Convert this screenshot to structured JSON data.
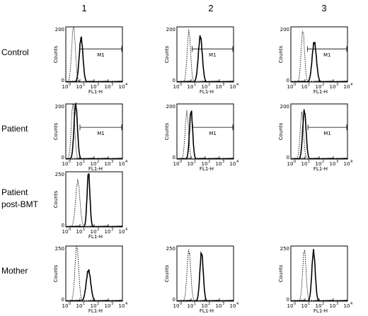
{
  "columns": [
    "1",
    "2",
    "3"
  ],
  "rows": [
    {
      "label_lines": [
        "Control"
      ]
    },
    {
      "label_lines": [
        "Patient"
      ]
    },
    {
      "label_lines": [
        "Patient",
        "post-BMT"
      ]
    },
    {
      "label_lines": [
        "Mother"
      ]
    }
  ],
  "chart_data": [
    {
      "type": "line",
      "row": 0,
      "col": 0,
      "ylabel": "Counts",
      "xlabel": "FL1-H",
      "xscale": "log",
      "xlim": [
        1,
        10000
      ],
      "ylim": [
        0,
        200
      ],
      "ytick_labels": [
        "0",
        "200"
      ],
      "x_ticks": [
        1,
        10,
        100,
        1000,
        10000
      ],
      "x_tick_labels": [
        "10",
        "10",
        "10",
        "10",
        "10"
      ],
      "x_tick_exponents": [
        "0",
        "1",
        "2",
        "3",
        "4"
      ],
      "gate": {
        "label": "M1",
        "x_start": 10,
        "x_end": 10000,
        "y": 120
      },
      "series": [
        {
          "style": "dotted",
          "peak_x": 3.5,
          "peak_y": 200,
          "spread": 0.13
        },
        {
          "style": "solid",
          "peak_x": 12,
          "peak_y": 160,
          "spread": 0.13
        }
      ]
    },
    {
      "type": "line",
      "row": 0,
      "col": 1,
      "ylabel": "Counts",
      "xlabel": "FL1-H",
      "xscale": "log",
      "xlim": [
        1,
        10000
      ],
      "ylim": [
        0,
        200
      ],
      "ytick_labels": [
        "0",
        "200"
      ],
      "x_ticks": [
        1,
        10,
        100,
        1000,
        10000
      ],
      "x_tick_labels": [
        "10",
        "10",
        "10",
        "10",
        "10"
      ],
      "x_tick_exponents": [
        "0",
        "1",
        "2",
        "3",
        "4"
      ],
      "gate": {
        "label": "M1",
        "x_start": 12,
        "x_end": 10000,
        "y": 120
      },
      "series": [
        {
          "style": "dotted",
          "peak_x": 7,
          "peak_y": 185,
          "spread": 0.12
        },
        {
          "style": "solid",
          "peak_x": 45,
          "peak_y": 165,
          "spread": 0.14
        }
      ]
    },
    {
      "type": "line",
      "row": 0,
      "col": 2,
      "ylabel": "Counts",
      "xlabel": "FL1-H",
      "xscale": "log",
      "xlim": [
        1,
        10000
      ],
      "ylim": [
        0,
        200
      ],
      "ytick_labels": [
        "0",
        "200"
      ],
      "x_ticks": [
        1,
        10,
        100,
        1000,
        10000
      ],
      "x_tick_labels": [
        "10",
        "10",
        "10",
        "10",
        "10"
      ],
      "x_tick_exponents": [
        "0",
        "1",
        "2",
        "3",
        "4"
      ],
      "gate": {
        "label": "M1",
        "x_start": 15,
        "x_end": 10000,
        "y": 120
      },
      "series": [
        {
          "style": "dotted",
          "peak_x": 7,
          "peak_y": 185,
          "spread": 0.12
        },
        {
          "style": "solid",
          "peak_x": 45,
          "peak_y": 145,
          "spread": 0.15
        }
      ]
    },
    {
      "type": "line",
      "row": 1,
      "col": 0,
      "ylabel": "Counts",
      "xlabel": "FL1-H",
      "xscale": "log",
      "xlim": [
        1,
        10000
      ],
      "ylim": [
        0,
        200
      ],
      "ytick_labels": [
        "0",
        "200"
      ],
      "x_ticks": [
        1,
        10,
        100,
        1000,
        10000
      ],
      "x_tick_labels": [
        "10",
        "10",
        "10",
        "10",
        "10"
      ],
      "x_tick_exponents": [
        "0",
        "1",
        "2",
        "3",
        "4"
      ],
      "gate": {
        "label": "M1",
        "x_start": 10,
        "x_end": 10000,
        "y": 115
      },
      "series": [
        {
          "style": "dotted",
          "peak_x": 3.2,
          "peak_y": 200,
          "spread": 0.12
        },
        {
          "style": "solid",
          "peak_x": 5,
          "peak_y": 200,
          "spread": 0.12
        }
      ]
    },
    {
      "type": "line",
      "row": 1,
      "col": 1,
      "ylabel": "Counts",
      "xlabel": "FL1-H",
      "xscale": "log",
      "xlim": [
        1,
        10000
      ],
      "ylim": [
        0,
        200
      ],
      "ytick_labels": [
        "0",
        "200"
      ],
      "x_ticks": [
        1,
        10,
        100,
        1000,
        10000
      ],
      "x_tick_labels": [
        "10",
        "10",
        "10",
        "10",
        "10"
      ],
      "x_tick_exponents": [
        "0",
        "1",
        "2",
        "3",
        "4"
      ],
      "gate": {
        "label": "M1",
        "x_start": 13,
        "x_end": 10000,
        "y": 115
      },
      "series": [
        {
          "style": "dotted",
          "peak_x": 5,
          "peak_y": 170,
          "spread": 0.12
        },
        {
          "style": "solid",
          "peak_x": 10,
          "peak_y": 175,
          "spread": 0.11
        }
      ]
    },
    {
      "type": "line",
      "row": 1,
      "col": 2,
      "ylabel": "Counts",
      "xlabel": "FL1-H",
      "xscale": "log",
      "xlim": [
        1,
        10000
      ],
      "ylim": [
        0,
        200
      ],
      "ytick_labels": [
        "0",
        "200"
      ],
      "x_ticks": [
        1,
        10,
        100,
        1000,
        10000
      ],
      "x_tick_labels": [
        "10",
        "10",
        "10",
        "10",
        "10"
      ],
      "x_tick_exponents": [
        "0",
        "1",
        "2",
        "3",
        "4"
      ],
      "gate": {
        "label": "M1",
        "x_start": 16,
        "x_end": 10000,
        "y": 115
      },
      "series": [
        {
          "style": "dotted",
          "peak_x": 6,
          "peak_y": 165,
          "spread": 0.12
        },
        {
          "style": "solid",
          "peak_x": 9,
          "peak_y": 175,
          "spread": 0.12
        }
      ]
    },
    {
      "type": "line",
      "row": 2,
      "col": 0,
      "ylabel": "Counts",
      "xlabel": "FL1-H",
      "xscale": "log",
      "xlim": [
        1,
        10000
      ],
      "ylim": [
        0,
        250
      ],
      "ytick_labels": [
        "0",
        "250"
      ],
      "x_ticks": [
        1,
        10,
        100,
        1000,
        10000
      ],
      "x_tick_labels": [
        "10",
        "10",
        "10",
        "10",
        "10"
      ],
      "x_tick_exponents": [
        "0",
        "1",
        "2",
        "3",
        "4"
      ],
      "series": [
        {
          "style": "dotted",
          "peak_x": 7,
          "peak_y": 210,
          "spread": 0.15
        },
        {
          "style": "solid",
          "peak_x": 40,
          "peak_y": 245,
          "spread": 0.1
        }
      ]
    },
    {
      "type": "line",
      "row": 3,
      "col": 0,
      "ylabel": "Counts",
      "xlabel": "FL1-H",
      "xscale": "log",
      "xlim": [
        1,
        10000
      ],
      "ylim": [
        0,
        250
      ],
      "ytick_labels": [
        "0",
        "250"
      ],
      "x_ticks": [
        1,
        10,
        100,
        1000,
        10000
      ],
      "x_tick_labels": [
        "10",
        "10",
        "10",
        "10",
        "10"
      ],
      "x_tick_exponents": [
        "0",
        "1",
        "2",
        "3",
        "4"
      ],
      "series": [
        {
          "style": "dotted",
          "peak_x": 6,
          "peak_y": 250,
          "spread": 0.13
        },
        {
          "style": "solid",
          "peak_x": 40,
          "peak_y": 140,
          "spread": 0.16
        }
      ]
    },
    {
      "type": "line",
      "row": 3,
      "col": 1,
      "ylabel": "Counts",
      "xlabel": "FL1-H",
      "xscale": "log",
      "xlim": [
        1,
        10000
      ],
      "ylim": [
        0,
        250
      ],
      "ytick_labels": [
        "0",
        "250"
      ],
      "x_ticks": [
        1,
        10,
        100,
        1000,
        10000
      ],
      "x_tick_labels": [
        "10",
        "10",
        "10",
        "10",
        "10"
      ],
      "x_tick_exponents": [
        "0",
        "1",
        "2",
        "3",
        "4"
      ],
      "series": [
        {
          "style": "dotted",
          "peak_x": 7,
          "peak_y": 230,
          "spread": 0.13
        },
        {
          "style": "solid",
          "peak_x": 55,
          "peak_y": 220,
          "spread": 0.12
        }
      ]
    },
    {
      "type": "line",
      "row": 3,
      "col": 2,
      "ylabel": "Counts",
      "xlabel": "FL1-H",
      "xscale": "log",
      "xlim": [
        1,
        10000
      ],
      "ylim": [
        0,
        250
      ],
      "ytick_labels": [
        "0",
        "250"
      ],
      "x_ticks": [
        1,
        10,
        100,
        1000,
        10000
      ],
      "x_tick_labels": [
        "10",
        "10",
        "10",
        "10",
        "10"
      ],
      "x_tick_exponents": [
        "0",
        "1",
        "2",
        "3",
        "4"
      ],
      "series": [
        {
          "style": "dotted",
          "peak_x": 9,
          "peak_y": 230,
          "spread": 0.12
        },
        {
          "style": "solid",
          "peak_x": 40,
          "peak_y": 225,
          "spread": 0.12
        }
      ]
    }
  ]
}
